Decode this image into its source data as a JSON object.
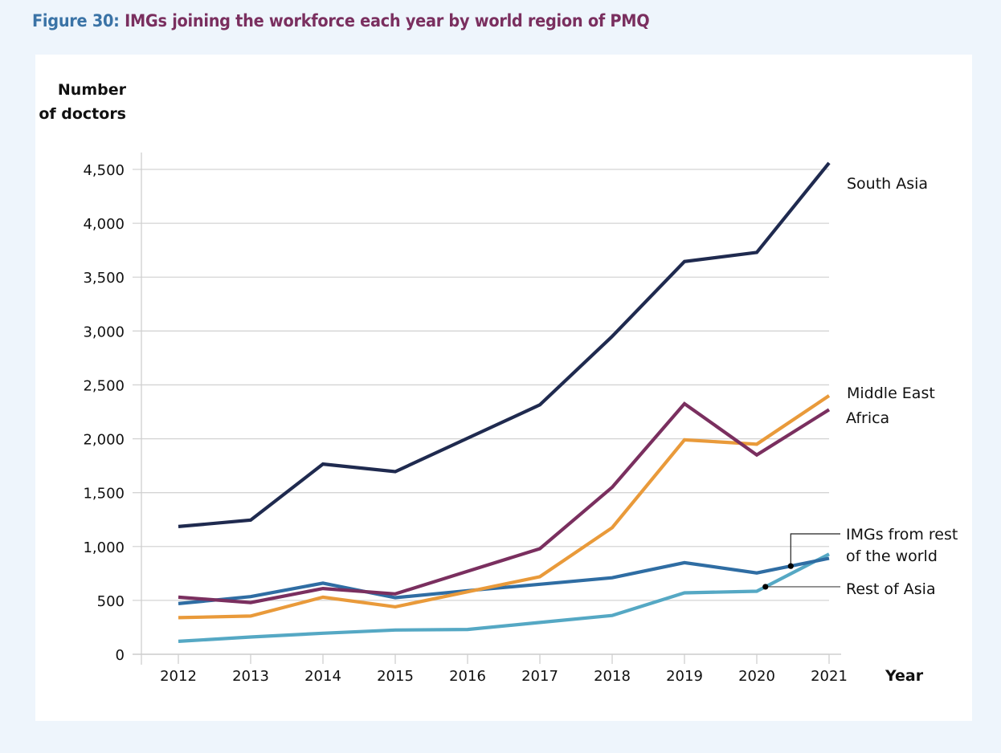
{
  "figure": {
    "number_label": "Figure 30:",
    "title_text": "IMGs joining the workforce each year by world region of PMQ",
    "colors": {
      "number": "#3a73a6",
      "title": "#7a2f5f",
      "background": "#eef5fc",
      "card": "#ffffff"
    }
  },
  "chart_data": {
    "type": "line",
    "title": "IMGs joining the workforce each year by world region of PMQ",
    "xlabel": "Year",
    "ylabel": "Number of doctors",
    "ylabel_lines": [
      "Number",
      "of doctors"
    ],
    "x": [
      2012,
      2013,
      2014,
      2015,
      2016,
      2017,
      2018,
      2019,
      2020,
      2021
    ],
    "ylim": [
      0,
      4500
    ],
    "yticks": [
      0,
      500,
      1000,
      1500,
      2000,
      2500,
      3000,
      3500,
      4000,
      4500
    ],
    "ytick_labels": [
      "0",
      "500",
      "1,000",
      "1,500",
      "2,000",
      "2,500",
      "3,000",
      "3,500",
      "4,000",
      "4,500"
    ],
    "grid": true,
    "legend": "direct labels at right",
    "series": [
      {
        "name": "Rest of Asia",
        "label_lines": [
          "Rest of Asia"
        ],
        "color": "#55a8c4",
        "values": [
          120,
          160,
          195,
          225,
          230,
          295,
          360,
          570,
          585,
          930
        ],
        "callout": "dot-leader"
      },
      {
        "name": "IMGs from rest of the world",
        "label_lines": [
          "IMGs from rest",
          "of the world"
        ],
        "color": "#2f6da3",
        "values": [
          470,
          535,
          660,
          525,
          590,
          650,
          710,
          850,
          755,
          890
        ],
        "callout": "dot-leader"
      },
      {
        "name": "Africa",
        "label_lines": [
          "Africa"
        ],
        "color": "#e99a3a",
        "values": [
          340,
          355,
          530,
          440,
          580,
          720,
          1175,
          1990,
          1950,
          2400
        ]
      },
      {
        "name": "Middle East",
        "label_lines": [
          "Middle East"
        ],
        "color": "#7a2f5f",
        "values": [
          530,
          480,
          610,
          560,
          770,
          980,
          1550,
          2325,
          1850,
          2270
        ]
      },
      {
        "name": "South Asia",
        "label_lines": [
          "South Asia"
        ],
        "color": "#1f2a4f",
        "values": [
          1185,
          1245,
          1765,
          1695,
          2005,
          2315,
          2950,
          3645,
          3730,
          4560
        ]
      }
    ]
  }
}
